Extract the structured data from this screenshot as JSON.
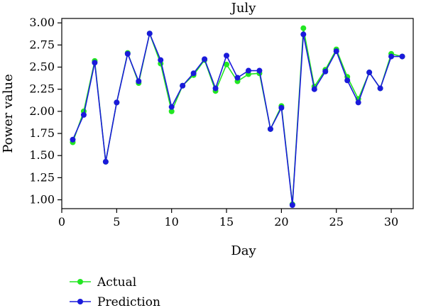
{
  "chart_data": {
    "type": "line",
    "title": "July",
    "xlabel": "Day",
    "ylabel": "Power value",
    "xlim": [
      0,
      32
    ],
    "ylim": [
      0.9,
      3.05
    ],
    "xticks": [
      0,
      5,
      10,
      15,
      20,
      25,
      30
    ],
    "yticks": [
      1.0,
      1.25,
      1.5,
      1.75,
      2.0,
      2.25,
      2.5,
      2.75,
      3.0
    ],
    "xtick_labels": [
      "0",
      "5",
      "10",
      "15",
      "20",
      "25",
      "30"
    ],
    "ytick_labels": [
      "1.00",
      "1.25",
      "1.50",
      "1.75",
      "2.00",
      "2.25",
      "2.50",
      "2.75",
      "3.00"
    ],
    "grid": false,
    "legend_position": "bottom-left outside",
    "x": [
      1,
      2,
      3,
      4,
      5,
      6,
      7,
      8,
      9,
      10,
      11,
      12,
      13,
      14,
      15,
      16,
      17,
      18,
      19,
      20,
      21,
      22,
      23,
      24,
      25,
      26,
      27,
      28,
      29,
      30,
      31
    ],
    "series": [
      {
        "name": "Actual",
        "color": "#22e622",
        "values": [
          1.65,
          2.0,
          2.57,
          1.43,
          2.1,
          2.66,
          2.32,
          2.88,
          2.54,
          2.0,
          2.29,
          2.41,
          2.58,
          2.23,
          2.53,
          2.34,
          2.42,
          2.43,
          1.8,
          2.06,
          0.95,
          2.94,
          2.28,
          2.47,
          2.7,
          2.39,
          2.14,
          2.44,
          2.26,
          2.65,
          2.62
        ]
      },
      {
        "name": "Prediction",
        "color": "#1a1adb",
        "values": [
          1.68,
          1.96,
          2.55,
          1.43,
          2.1,
          2.65,
          2.34,
          2.88,
          2.58,
          2.05,
          2.29,
          2.43,
          2.59,
          2.26,
          2.63,
          2.38,
          2.46,
          2.46,
          1.8,
          2.04,
          0.94,
          2.87,
          2.25,
          2.45,
          2.68,
          2.35,
          2.1,
          2.44,
          2.26,
          2.62,
          2.62
        ]
      }
    ]
  }
}
